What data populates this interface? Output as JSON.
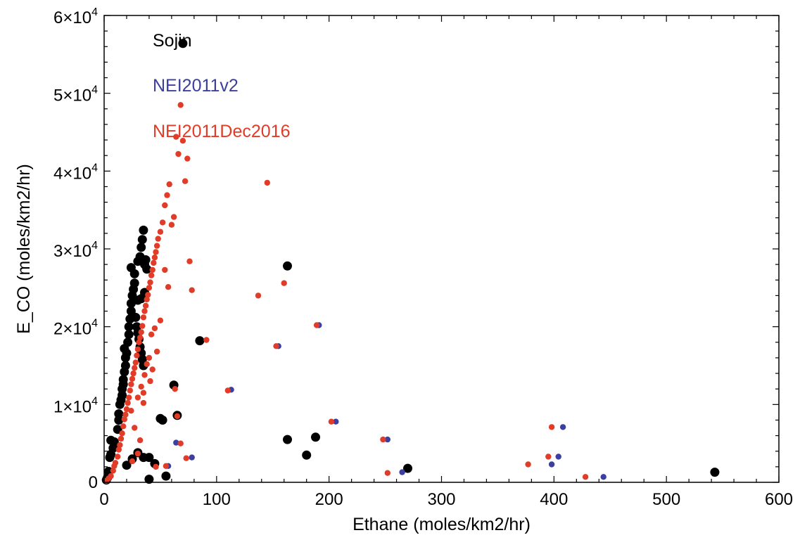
{
  "chart_data": {
    "type": "scatter",
    "title": "",
    "xlabel": "Ethane (moles/km2/hr)",
    "ylabel": "E_CO (moles/km2/hr)",
    "xlim": [
      0,
      600
    ],
    "ylim": [
      0,
      60000
    ],
    "x_ticks": [
      0,
      100,
      200,
      300,
      400,
      500,
      600
    ],
    "x_tick_labels": [
      "0",
      "100",
      "200",
      "300",
      "400",
      "500",
      "600"
    ],
    "y_ticks": [
      0,
      10000,
      20000,
      30000,
      40000,
      50000,
      60000
    ],
    "y_tick_labels": [
      {
        "mantissa": "0",
        "exponent": ""
      },
      {
        "mantissa": "1×10",
        "exponent": "4"
      },
      {
        "mantissa": "2×10",
        "exponent": "4"
      },
      {
        "mantissa": "3×10",
        "exponent": "4"
      },
      {
        "mantissa": "4×10",
        "exponent": "4"
      },
      {
        "mantissa": "5×10",
        "exponent": "4"
      },
      {
        "mantissa": "6×10",
        "exponent": "4"
      }
    ],
    "grid": false,
    "legend_placement": "top-left",
    "series": [
      {
        "name": "Sojin",
        "label": "Sojin",
        "color": "#000000",
        "marker_size": "large",
        "points": [
          [
            2,
            300
          ],
          [
            3,
            600
          ],
          [
            4,
            1400
          ],
          [
            5,
            3200
          ],
          [
            6,
            3600
          ],
          [
            6,
            5400
          ],
          [
            8,
            4400
          ],
          [
            9,
            5200
          ],
          [
            12,
            6800
          ],
          [
            13,
            8000
          ],
          [
            13,
            8800
          ],
          [
            14,
            10000
          ],
          [
            15,
            10600
          ],
          [
            16,
            11200
          ],
          [
            16,
            12000
          ],
          [
            17,
            12600
          ],
          [
            17,
            13200
          ],
          [
            18,
            14200
          ],
          [
            19,
            15000
          ],
          [
            19,
            16000
          ],
          [
            18,
            17200
          ],
          [
            20,
            16600
          ],
          [
            21,
            18000
          ],
          [
            22,
            19000
          ],
          [
            22,
            20000
          ],
          [
            23,
            21000
          ],
          [
            24,
            22000
          ],
          [
            24,
            23000
          ],
          [
            25,
            24000
          ],
          [
            26,
            24800
          ],
          [
            27,
            25600
          ],
          [
            27,
            26800
          ],
          [
            24,
            27600
          ],
          [
            30,
            28400
          ],
          [
            32,
            29000
          ],
          [
            33,
            30200
          ],
          [
            34,
            31200
          ],
          [
            35,
            32400
          ],
          [
            36,
            28000
          ],
          [
            37,
            28600
          ],
          [
            38,
            27400
          ],
          [
            28,
            21200
          ],
          [
            29,
            20000
          ],
          [
            30,
            19200
          ],
          [
            31,
            18400
          ],
          [
            32,
            17400
          ],
          [
            33,
            16600
          ],
          [
            34,
            15800
          ],
          [
            35,
            15000
          ],
          [
            30,
            23400
          ],
          [
            33,
            23600
          ],
          [
            36,
            24400
          ],
          [
            20,
            2200
          ],
          [
            25,
            3000
          ],
          [
            30,
            3800
          ],
          [
            35,
            3200
          ],
          [
            40,
            3200
          ],
          [
            45,
            2400
          ],
          [
            40,
            400
          ],
          [
            55,
            800
          ],
          [
            50,
            8200
          ],
          [
            52,
            8000
          ],
          [
            62,
            12500
          ],
          [
            65,
            8600
          ],
          [
            70,
            56400
          ],
          [
            85,
            18200
          ],
          [
            163,
            27800
          ],
          [
            163,
            5500
          ],
          [
            180,
            3500
          ],
          [
            188,
            5800
          ],
          [
            270,
            1800
          ],
          [
            543,
            1300
          ]
        ]
      },
      {
        "name": "NEI2011v2",
        "label": "NEI2011v2",
        "color": "#3b3fa0",
        "marker_size": "small",
        "points": [
          [
            57,
            2100
          ],
          [
            64,
            5100
          ],
          [
            78,
            3200
          ],
          [
            113,
            11900
          ],
          [
            155,
            17500
          ],
          [
            191,
            20200
          ],
          [
            206,
            7800
          ],
          [
            252,
            5500
          ],
          [
            265,
            1300
          ],
          [
            398,
            2300
          ],
          [
            404,
            3300
          ],
          [
            408,
            7100
          ],
          [
            444,
            700
          ]
        ]
      },
      {
        "name": "NEI2011Dec2016",
        "label": "NEI2011Dec2016",
        "color": "#e03c28",
        "marker_size": "small",
        "points": [
          [
            2,
            200
          ],
          [
            4,
            500
          ],
          [
            6,
            800
          ],
          [
            8,
            1500
          ],
          [
            9,
            2100
          ],
          [
            10,
            2500
          ],
          [
            12,
            3300
          ],
          [
            13,
            4200
          ],
          [
            14,
            4800
          ],
          [
            15,
            5600
          ],
          [
            16,
            6300
          ],
          [
            17,
            7200
          ],
          [
            18,
            8100
          ],
          [
            19,
            8700
          ],
          [
            20,
            9400
          ],
          [
            21,
            10200
          ],
          [
            22,
            10900
          ],
          [
            23,
            11800
          ],
          [
            24,
            12600
          ],
          [
            25,
            13300
          ],
          [
            26,
            14000
          ],
          [
            27,
            14700
          ],
          [
            28,
            15400
          ],
          [
            29,
            16300
          ],
          [
            30,
            17100
          ],
          [
            31,
            18000
          ],
          [
            32,
            18600
          ],
          [
            33,
            19300
          ],
          [
            34,
            20100
          ],
          [
            35,
            21200
          ],
          [
            36,
            22000
          ],
          [
            37,
            22700
          ],
          [
            38,
            23500
          ],
          [
            39,
            24100
          ],
          [
            40,
            25000
          ],
          [
            41,
            25700
          ],
          [
            42,
            26600
          ],
          [
            43,
            27300
          ],
          [
            44,
            28200
          ],
          [
            45,
            28900
          ],
          [
            46,
            29600
          ],
          [
            47,
            30400
          ],
          [
            48,
            31300
          ],
          [
            50,
            32200
          ],
          [
            52,
            33400
          ],
          [
            54,
            35600
          ],
          [
            56,
            36900
          ],
          [
            58,
            38300
          ],
          [
            60,
            33100
          ],
          [
            62,
            34100
          ],
          [
            64,
            44400
          ],
          [
            66,
            42200
          ],
          [
            68,
            48500
          ],
          [
            70,
            43900
          ],
          [
            72,
            38700
          ],
          [
            74,
            41600
          ],
          [
            76,
            28400
          ],
          [
            78,
            24700
          ],
          [
            54,
            27300
          ],
          [
            57,
            25100
          ],
          [
            50,
            20800
          ],
          [
            45,
            19800
          ],
          [
            42,
            19000
          ],
          [
            47,
            16800
          ],
          [
            40,
            16000
          ],
          [
            38,
            15200
          ],
          [
            43,
            14500
          ],
          [
            36,
            13800
          ],
          [
            41,
            13000
          ],
          [
            33,
            12300
          ],
          [
            35,
            11500
          ],
          [
            30,
            10900
          ],
          [
            35,
            10200
          ],
          [
            24,
            9200
          ],
          [
            27,
            7000
          ],
          [
            32,
            5400
          ],
          [
            25,
            2700
          ],
          [
            30,
            3700
          ],
          [
            46,
            2000
          ],
          [
            55,
            2100
          ],
          [
            63,
            12000
          ],
          [
            65,
            8500
          ],
          [
            68,
            5000
          ],
          [
            73,
            3100
          ],
          [
            91,
            18300
          ],
          [
            110,
            11800
          ],
          [
            137,
            24000
          ],
          [
            145,
            38500
          ],
          [
            153,
            17500
          ],
          [
            160,
            25600
          ],
          [
            189,
            20200
          ],
          [
            202,
            7800
          ],
          [
            248,
            5500
          ],
          [
            252,
            1200
          ],
          [
            377,
            2300
          ],
          [
            395,
            3300
          ],
          [
            398,
            7100
          ],
          [
            428,
            700
          ]
        ]
      }
    ]
  }
}
